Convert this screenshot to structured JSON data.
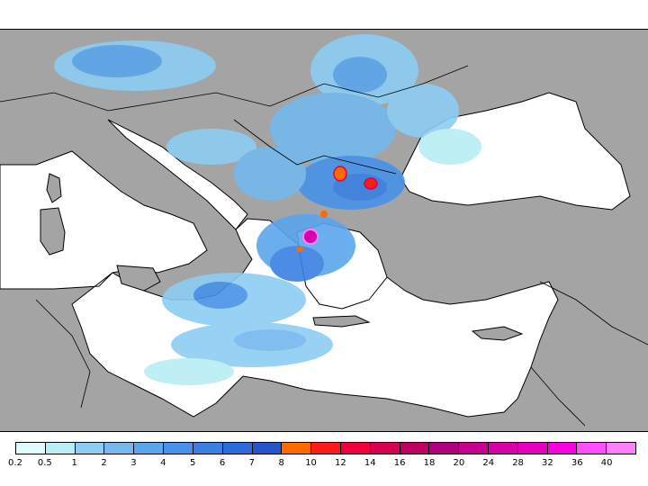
{
  "legend": {
    "labels": [
      "0.2",
      "0.5",
      "1",
      "2",
      "3",
      "4",
      "5",
      "6",
      "7",
      "8",
      "10",
      "12",
      "14",
      "16",
      "18",
      "20",
      "24",
      "28",
      "32",
      "36",
      "40"
    ],
    "colors": [
      "#e0fbfb",
      "#b8eef5",
      "#8ccdf2",
      "#74b8ee",
      "#5aa6ec",
      "#4792e8",
      "#3a80e2",
      "#2d6bd8",
      "#2456c8",
      "#ff6a00",
      "#ff1a1a",
      "#f0003c",
      "#d80050",
      "#c00060",
      "#b00080",
      "#c80090",
      "#d800a8",
      "#e800c0",
      "#f800e0",
      "#ff50ff",
      "#ff80ff"
    ]
  },
  "colors": {
    "land": "#a4a4a4",
    "sea": "#ffffff",
    "coast": "#000000"
  }
}
